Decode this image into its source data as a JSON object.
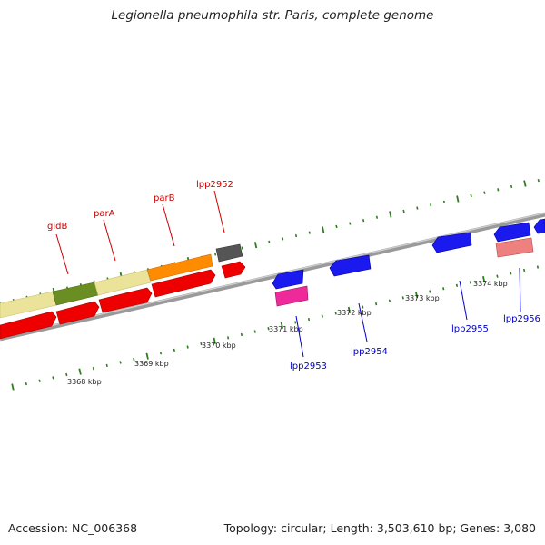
{
  "title": "Legionella pneumophila str. Paris, complete genome",
  "footer": {
    "accession": "Accession: NC_006368",
    "topology": "Topology: circular; Length: 3,503,610 bp; Genes: 3,080"
  },
  "colors": {
    "backbone": "#7a7a7a",
    "tick": "#2e7d1e",
    "label_forward": "#cc0000",
    "label_reverse": "#0000cc",
    "red": "#ee0000",
    "khaki": "#ebe39a",
    "olive": "#6b8e23",
    "orange": "#ff8c00",
    "gray": "#555555",
    "blue": "#1a1aee",
    "magenta": "#ee2a9a",
    "pink": "#ee8080"
  },
  "tick_labels": [
    {
      "label": "3368 kbp"
    },
    {
      "label": "3369 kbp"
    },
    {
      "label": "3370 kbp"
    },
    {
      "label": "3371 kbp"
    },
    {
      "label": "3372 kbp"
    },
    {
      "label": "3373 kbp"
    },
    {
      "label": "3374 kbp"
    }
  ],
  "gene_labels": [
    {
      "label": "gidB",
      "strand": "forward"
    },
    {
      "label": "parA",
      "strand": "forward"
    },
    {
      "label": "parB",
      "strand": "forward"
    },
    {
      "label": "lpp2952",
      "strand": "forward"
    },
    {
      "label": "lpp2953",
      "strand": "reverse"
    },
    {
      "label": "lpp2954",
      "strand": "reverse"
    },
    {
      "label": "lpp2955",
      "strand": "reverse"
    },
    {
      "label": "lpp2956",
      "strand": "reverse"
    }
  ]
}
